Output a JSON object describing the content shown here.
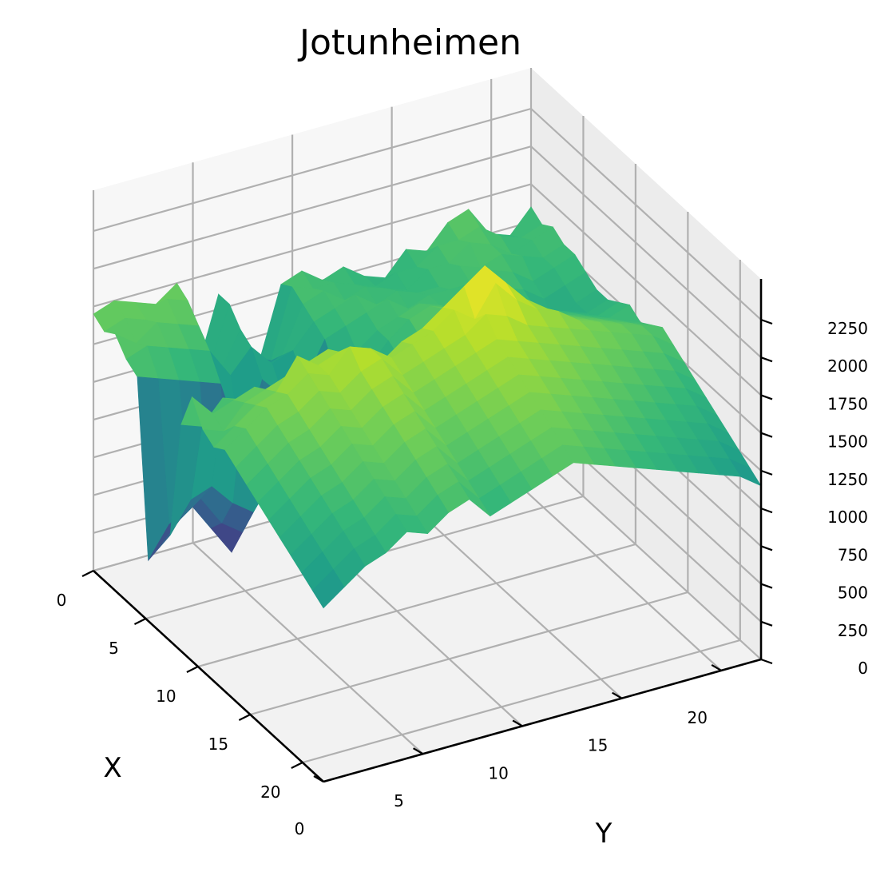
{
  "chart_data": {
    "type": "surface3d",
    "title": "Jotunheimen",
    "xlabel": "X",
    "ylabel": "Y",
    "zlabel": "",
    "xlim": [
      0,
      22
    ],
    "ylim": [
      0,
      22
    ],
    "zlim": [
      0,
      2250
    ],
    "x_ticks": [
      0,
      5,
      10,
      15,
      20
    ],
    "y_ticks": [
      0,
      5,
      10,
      15,
      20
    ],
    "z_ticks": [
      0,
      250,
      500,
      750,
      1000,
      1250,
      1500,
      1750,
      2000,
      2250
    ],
    "x_tick_labels": [
      "0",
      "5",
      "10",
      "15",
      "20"
    ],
    "y_tick_labels": [
      "0",
      "5",
      "10",
      "15",
      "20"
    ],
    "z_tick_labels": [
      "0",
      "250",
      "500",
      "750",
      "1000",
      "1250",
      "1500",
      "1750",
      "2000",
      "2250"
    ],
    "grid": true,
    "colormap": "viridis",
    "grid_size": 22,
    "z": [
      [
        1700,
        1750,
        1700,
        1650,
        1750,
        1150,
        1600,
        1050,
        1100,
        1550,
        1600,
        1500,
        1550,
        1450,
        1400,
        1550,
        1500,
        1650,
        1700,
        1500,
        1450,
        1600
      ],
      [
        1650,
        1700,
        1650,
        1750,
        1700,
        1200,
        1600,
        1100,
        1150,
        1600,
        1550,
        1550,
        1500,
        1450,
        1500,
        1500,
        1600,
        1600,
        1650,
        1550,
        1500,
        1550
      ],
      [
        1700,
        1600,
        1700,
        1650,
        1600,
        1250,
        1500,
        1200,
        1250,
        1550,
        1600,
        1500,
        1550,
        1500,
        1450,
        1550,
        1550,
        1650,
        1600,
        1500,
        1550,
        1600
      ],
      [
        1600,
        1650,
        1600,
        1550,
        1500,
        1300,
        1450,
        1300,
        1350,
        1500,
        1550,
        1600,
        1500,
        1550,
        1500,
        1500,
        1600,
        1550,
        1600,
        1550,
        1500,
        1550
      ],
      [
        1550,
        1500,
        1450,
        1400,
        1350,
        900,
        1300,
        1150,
        1200,
        1450,
        1500,
        1550,
        1600,
        1500,
        1550,
        1550,
        1550,
        1600,
        1550,
        1450,
        1500,
        1550
      ],
      [
        400,
        600,
        700,
        500,
        300,
        600,
        800,
        500,
        500,
        1300,
        1400,
        1500,
        1550,
        1600,
        1550,
        1500,
        1500,
        1550,
        1500,
        1400,
        1450,
        1500
      ],
      [
        550,
        700,
        800,
        600,
        500,
        800,
        900,
        650,
        600,
        1250,
        1350,
        1500,
        1600,
        1650,
        1600,
        1550,
        1550,
        1500,
        1450,
        1300,
        1400,
        1450
      ],
      [
        700,
        900,
        950,
        800,
        700,
        900,
        1000,
        900,
        800,
        1200,
        1300,
        1450,
        1550,
        1700,
        1750,
        1650,
        1600,
        1550,
        1500,
        1450,
        1400,
        1450
      ],
      [
        1500,
        1450,
        1600,
        1550,
        1500,
        1550,
        1600,
        1500,
        1450,
        1350,
        1400,
        1500,
        1650,
        1800,
        1850,
        1700,
        1650,
        1600,
        1550,
        1500,
        1450,
        1500
      ],
      [
        1750,
        1600,
        1650,
        1700,
        1600,
        1700,
        1750,
        1650,
        1700,
        1500,
        1550,
        1650,
        1750,
        1850,
        1900,
        1800,
        1700,
        1650,
        1600,
        1550,
        1500,
        1550
      ],
      [
        1600,
        1550,
        1700,
        1750,
        1800,
        1850,
        1900,
        1800,
        1750,
        1700,
        1800,
        1900,
        2000,
        2100,
        2050,
        1900,
        1800,
        1700,
        1650,
        1600,
        1550,
        1500
      ],
      [
        1550,
        1650,
        1750,
        1800,
        2000,
        1900,
        1950,
        1850,
        1800,
        1900,
        1950,
        2050,
        2150,
        2250,
        2100,
        1950,
        1850,
        1750,
        1700,
        1650,
        1600,
        1550
      ],
      [
        1600,
        1700,
        1800,
        1850,
        1950,
        1900,
        2050,
        2000,
        1900,
        1950,
        2000,
        2100,
        2000,
        2200,
        2050,
        1950,
        1900,
        1800,
        1750,
        1700,
        1650,
        1600
      ],
      [
        1550,
        1650,
        1750,
        1800,
        1900,
        1850,
        1950,
        2000,
        1850,
        1900,
        1950,
        2000,
        2100,
        2050,
        1950,
        1900,
        1850,
        1800,
        1750,
        1700,
        1650,
        1550
      ],
      [
        1500,
        1600,
        1700,
        1750,
        1850,
        1800,
        1900,
        1950,
        1800,
        1850,
        1900,
        1950,
        2000,
        1950,
        1900,
        1850,
        1800,
        1750,
        1700,
        1650,
        1600,
        1500
      ],
      [
        1450,
        1550,
        1650,
        1700,
        1800,
        1750,
        1850,
        1900,
        1750,
        1800,
        1850,
        1900,
        1950,
        1900,
        1850,
        1800,
        1750,
        1700,
        1650,
        1600,
        1550,
        1450
      ],
      [
        1400,
        1500,
        1600,
        1650,
        1750,
        1700,
        1800,
        1850,
        1700,
        1750,
        1800,
        1850,
        1900,
        1850,
        1800,
        1750,
        1700,
        1650,
        1600,
        1550,
        1500,
        1400
      ],
      [
        1350,
        1450,
        1550,
        1600,
        1700,
        1650,
        1750,
        1800,
        1650,
        1700,
        1750,
        1800,
        1850,
        1800,
        1750,
        1700,
        1650,
        1600,
        1550,
        1500,
        1450,
        1350
      ],
      [
        1300,
        1400,
        1500,
        1550,
        1650,
        1600,
        1700,
        1750,
        1600,
        1650,
        1700,
        1750,
        1800,
        1750,
        1700,
        1650,
        1600,
        1550,
        1500,
        1450,
        1400,
        1300
      ],
      [
        1250,
        1350,
        1450,
        1500,
        1600,
        1550,
        1650,
        1700,
        1550,
        1600,
        1650,
        1700,
        1750,
        1700,
        1650,
        1600,
        1550,
        1500,
        1450,
        1400,
        1350,
        1250
      ],
      [
        1200,
        1300,
        1400,
        1450,
        1550,
        1500,
        1600,
        1650,
        1500,
        1550,
        1600,
        1650,
        1700,
        1650,
        1600,
        1550,
        1500,
        1450,
        1400,
        1350,
        1300,
        1200
      ],
      [
        1150,
        1250,
        1350,
        1400,
        1500,
        1450,
        1550,
        1600,
        1450,
        1500,
        1550,
        1600,
        1650,
        1600,
        1550,
        1500,
        1450,
        1400,
        1350,
        1300,
        1250,
        1150
      ]
    ]
  }
}
